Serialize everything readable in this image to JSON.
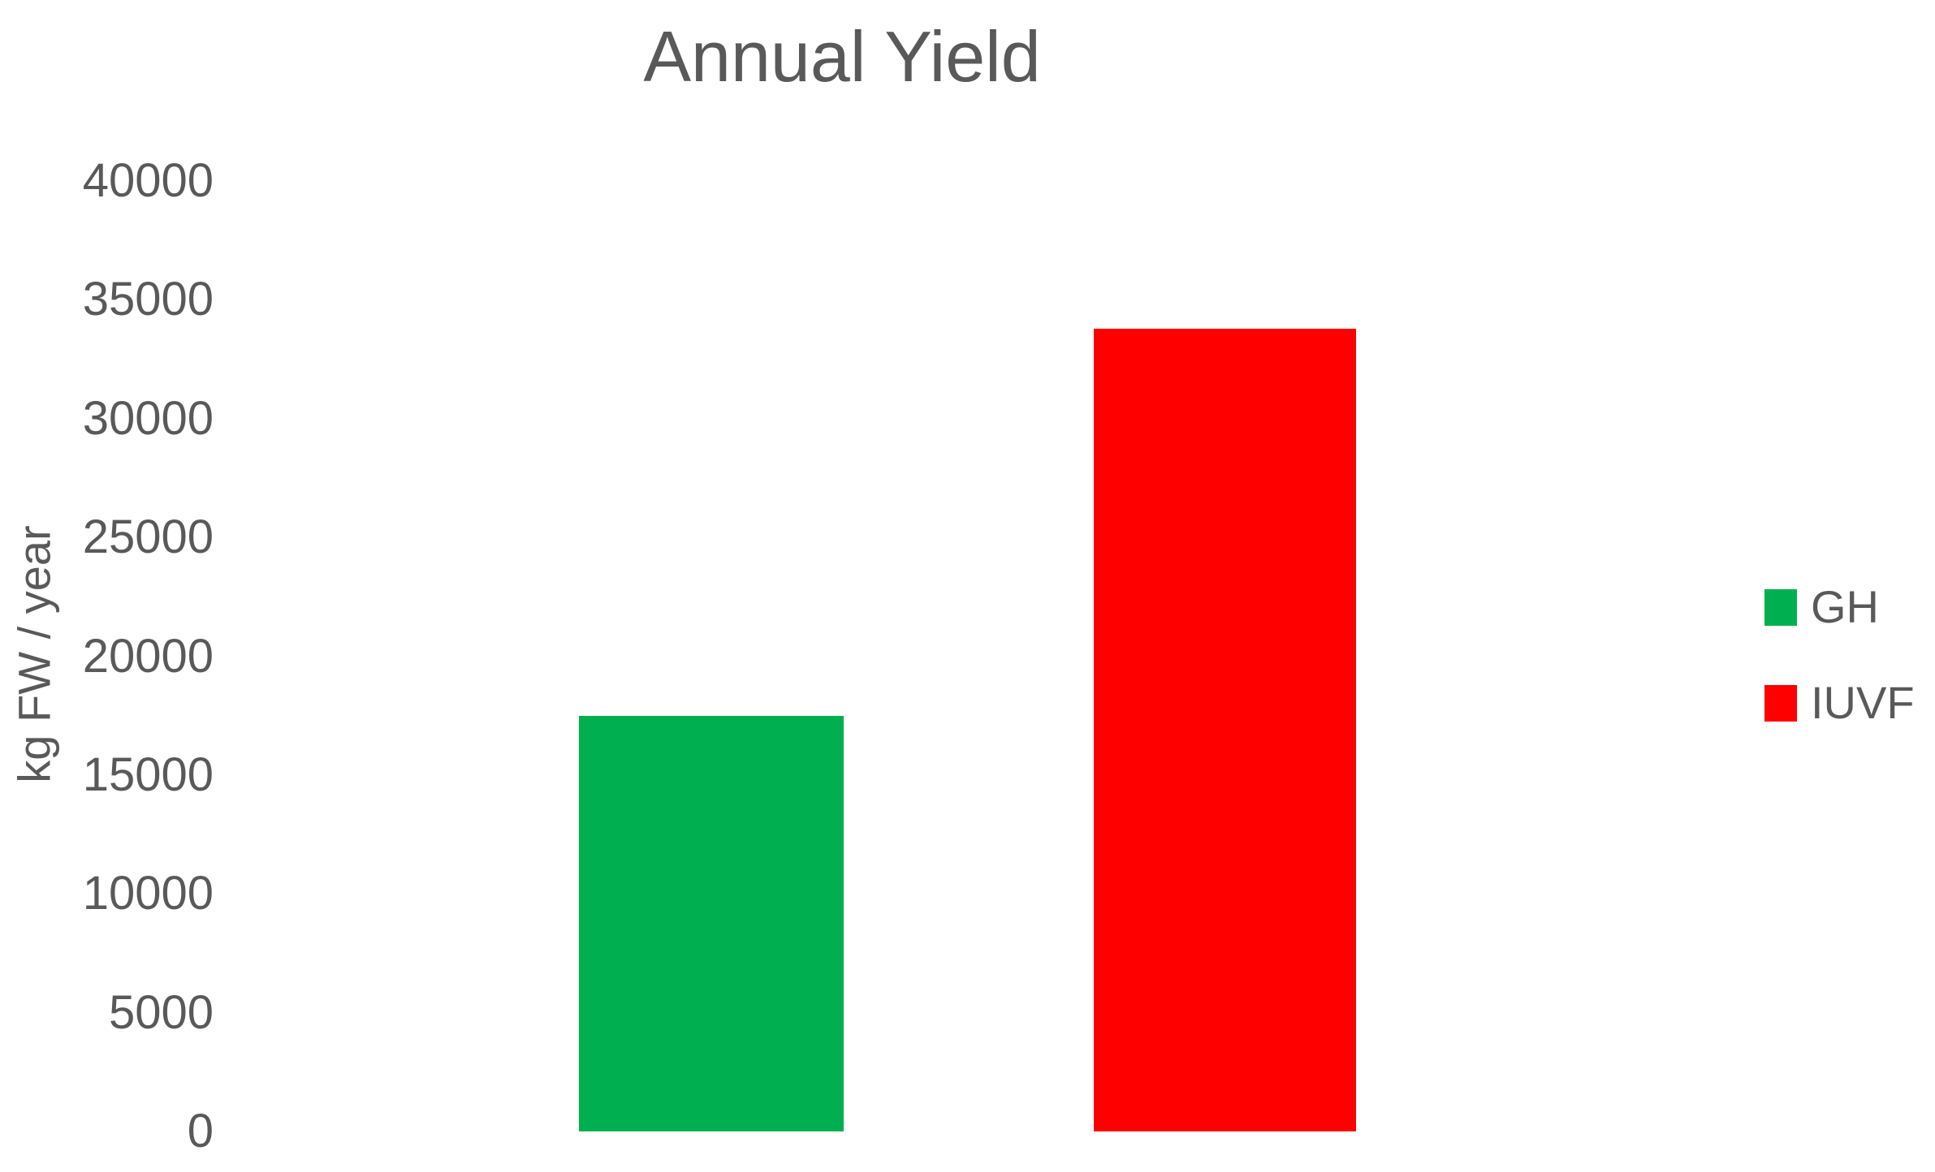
{
  "page": {
    "background": "#ffffff",
    "text_color": "#595959"
  },
  "chart_data": {
    "type": "bar",
    "title": "Annual Yield",
    "xlabel": "",
    "ylabel": "kg FW / year",
    "categories": [
      "GH",
      "IUVF"
    ],
    "values": [
      17500,
      33800
    ],
    "bar_colors": [
      "#00b050",
      "#ff0000"
    ],
    "ylim": [
      0,
      40000
    ],
    "yticks": [
      40000,
      35000,
      30000,
      25000,
      20000,
      15000,
      10000,
      5000,
      0
    ],
    "x_tick_labels_shown": false,
    "grid": false,
    "axis_lines": false,
    "legend": {
      "position": "right",
      "entries": [
        {
          "label": "GH",
          "color": "#00b050"
        },
        {
          "label": "IUVF",
          "color": "#ff0000"
        }
      ]
    }
  }
}
